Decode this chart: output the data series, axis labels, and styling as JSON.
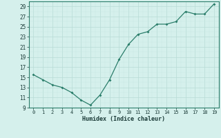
{
  "x": [
    0,
    1,
    2,
    3,
    4,
    5,
    6,
    7,
    8,
    9,
    10,
    11,
    12,
    13,
    14,
    15,
    16,
    17,
    18,
    19
  ],
  "y": [
    15.5,
    14.5,
    13.5,
    13.0,
    12.0,
    10.5,
    9.5,
    11.5,
    14.5,
    18.5,
    21.5,
    23.5,
    24.0,
    25.5,
    25.5,
    26.0,
    28.0,
    27.5,
    27.5,
    29.5
  ],
  "line_color": "#2a7d6a",
  "marker_color": "#2a7d6a",
  "bg_color": "#d5f0ec",
  "grid_color_major": "#b8dbd6",
  "grid_color_minor": "#c8e8e3",
  "xlabel": "Humidex (Indice chaleur)",
  "xlim": [
    -0.5,
    19.5
  ],
  "ylim": [
    9,
    30
  ],
  "yticks": [
    9,
    11,
    13,
    15,
    17,
    19,
    21,
    23,
    25,
    27,
    29
  ],
  "xticks": [
    0,
    1,
    2,
    3,
    4,
    5,
    6,
    7,
    8,
    9,
    10,
    11,
    12,
    13,
    14,
    15,
    16,
    17,
    18,
    19
  ],
  "spine_color": "#2a7d6a",
  "tick_color": "#1a3a37",
  "label_color": "#1a3a37"
}
